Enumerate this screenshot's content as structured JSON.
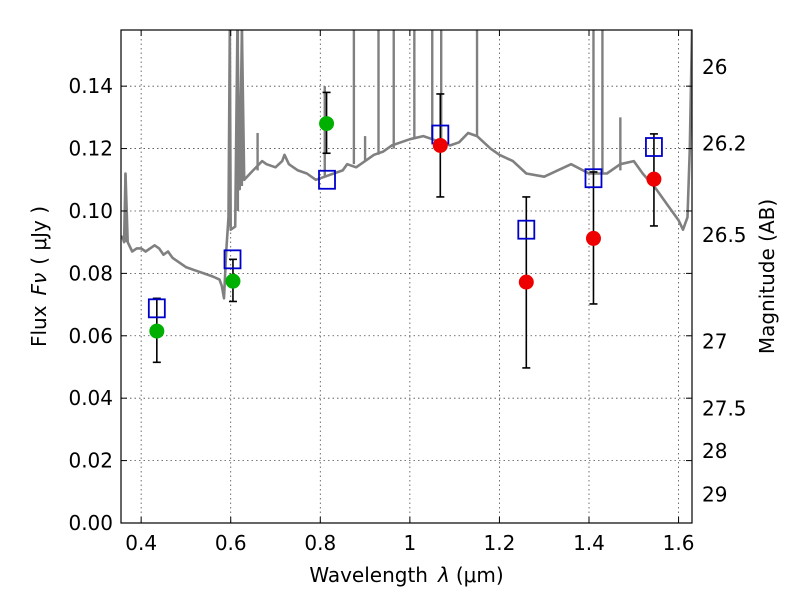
{
  "chart_data": {
    "type": "scatter",
    "xlabel_text": "Wavelength",
    "xlabel_symbol": "λ",
    "xlabel_unit": "(μm)",
    "ylabel_text": "Flux",
    "ylabel_symbol": "Fν",
    "ylabel_unit": "( μJy )",
    "ylabel_right": "Magnitude (AB)",
    "xlim": [
      0.355,
      1.63
    ],
    "ylim": [
      0.0,
      0.158
    ],
    "grid": true,
    "x_ticks": [
      0.4,
      0.6,
      0.8,
      1.0,
      1.2,
      1.4,
      1.6
    ],
    "x_tick_labels": [
      "0.4",
      "0.6",
      "0.8",
      "1",
      "1.2",
      "1.4",
      "1.6"
    ],
    "y_ticks": [
      0.0,
      0.02,
      0.04,
      0.06,
      0.08,
      0.1,
      0.12,
      0.14
    ],
    "y_tick_labels": [
      "0.00",
      "0.02",
      "0.04",
      "0.06",
      "0.08",
      "0.10",
      "0.12",
      "0.14"
    ],
    "right_ticks": [
      {
        "label": "26",
        "flux": 0.1462
      },
      {
        "label": "26.2",
        "flux": 0.1216
      },
      {
        "label": "26.5",
        "flux": 0.0923
      },
      {
        "label": "27",
        "flux": 0.0582
      },
      {
        "label": "27.5",
        "flux": 0.0367
      },
      {
        "label": "28",
        "flux": 0.0231
      },
      {
        "label": "29",
        "flux": 0.0092
      }
    ],
    "series": [
      {
        "name": "model_spectrum",
        "kind": "line",
        "color": "#808080",
        "points": [
          [
            0.355,
            0.092
          ],
          [
            0.36,
            0.091
          ],
          [
            0.362,
            0.09
          ],
          [
            0.365,
            0.112
          ],
          [
            0.37,
            0.09
          ],
          [
            0.38,
            0.087
          ],
          [
            0.39,
            0.088
          ],
          [
            0.4,
            0.088
          ],
          [
            0.41,
            0.087
          ],
          [
            0.42,
            0.088
          ],
          [
            0.43,
            0.089
          ],
          [
            0.44,
            0.088
          ],
          [
            0.45,
            0.086
          ],
          [
            0.46,
            0.087
          ],
          [
            0.47,
            0.085
          ],
          [
            0.48,
            0.084
          ],
          [
            0.5,
            0.082
          ],
          [
            0.52,
            0.081
          ],
          [
            0.54,
            0.08
          ],
          [
            0.56,
            0.079
          ],
          [
            0.575,
            0.078
          ],
          [
            0.58,
            0.076
          ],
          [
            0.585,
            0.072
          ],
          [
            0.59,
            0.087
          ],
          [
            0.595,
            0.098
          ],
          [
            0.598,
            0.158
          ],
          [
            0.6,
            0.094
          ],
          [
            0.61,
            0.095
          ],
          [
            0.615,
            0.158
          ],
          [
            0.62,
            0.107
          ],
          [
            0.625,
            0.158
          ],
          [
            0.63,
            0.11
          ],
          [
            0.65,
            0.113
          ],
          [
            0.67,
            0.116
          ],
          [
            0.68,
            0.115
          ],
          [
            0.7,
            0.114
          ],
          [
            0.715,
            0.116
          ],
          [
            0.72,
            0.118
          ],
          [
            0.73,
            0.115
          ],
          [
            0.75,
            0.113
          ],
          [
            0.77,
            0.112
          ],
          [
            0.79,
            0.11
          ],
          [
            0.81,
            0.111
          ],
          [
            0.83,
            0.112
          ],
          [
            0.85,
            0.113
          ],
          [
            0.86,
            0.115
          ],
          [
            0.88,
            0.114
          ],
          [
            0.9,
            0.116
          ],
          [
            0.92,
            0.118
          ],
          [
            0.94,
            0.119
          ],
          [
            0.96,
            0.121
          ],
          [
            0.98,
            0.122
          ],
          [
            1.0,
            0.123
          ],
          [
            1.03,
            0.124
          ],
          [
            1.05,
            0.123
          ],
          [
            1.07,
            0.122
          ],
          [
            1.09,
            0.121
          ],
          [
            1.11,
            0.122
          ],
          [
            1.13,
            0.125
          ],
          [
            1.15,
            0.124
          ],
          [
            1.18,
            0.12
          ],
          [
            1.2,
            0.118
          ],
          [
            1.23,
            0.116
          ],
          [
            1.26,
            0.112
          ],
          [
            1.3,
            0.111
          ],
          [
            1.33,
            0.113
          ],
          [
            1.36,
            0.115
          ],
          [
            1.4,
            0.112
          ],
          [
            1.44,
            0.112
          ],
          [
            1.47,
            0.115
          ],
          [
            1.5,
            0.116
          ],
          [
            1.52,
            0.112
          ],
          [
            1.55,
            0.107
          ],
          [
            1.58,
            0.101
          ],
          [
            1.6,
            0.097
          ],
          [
            1.61,
            0.094
          ],
          [
            1.62,
            0.098
          ],
          [
            1.625,
            0.12
          ],
          [
            1.63,
            0.158
          ]
        ]
      },
      {
        "name": "spectrum_spikes",
        "kind": "spikes",
        "color": "#808080",
        "lines": [
          [
            0.365,
            0.09,
            0.112
          ],
          [
            0.598,
            0.095,
            0.158
          ],
          [
            0.616,
            0.1,
            0.158
          ],
          [
            0.625,
            0.108,
            0.158
          ],
          [
            0.66,
            0.113,
            0.125
          ],
          [
            0.81,
            0.111,
            0.14
          ],
          [
            0.875,
            0.115,
            0.158
          ],
          [
            0.9,
            0.116,
            0.124
          ],
          [
            0.93,
            0.118,
            0.158
          ],
          [
            0.964,
            0.12,
            0.158
          ],
          [
            1.01,
            0.123,
            0.158
          ],
          [
            1.05,
            0.123,
            0.158
          ],
          [
            1.07,
            0.122,
            0.158
          ],
          [
            1.15,
            0.124,
            0.158
          ],
          [
            1.41,
            0.112,
            0.158
          ],
          [
            1.43,
            0.112,
            0.158
          ],
          [
            1.47,
            0.113,
            0.13
          ]
        ]
      },
      {
        "name": "green_measurements",
        "kind": "circle",
        "color": "#00b000",
        "points": [
          {
            "x": 0.435,
            "y": 0.0615,
            "err_lo": 0.0515,
            "err_hi": 0.072
          },
          {
            "x": 0.605,
            "y": 0.0775,
            "err_lo": 0.071,
            "err_hi": 0.0845
          },
          {
            "x": 0.814,
            "y": 0.128,
            "err_lo": 0.1185,
            "err_hi": 0.138
          }
        ]
      },
      {
        "name": "red_measurements",
        "kind": "circle",
        "color": "#ee0000",
        "points": [
          {
            "x": 1.068,
            "y": 0.121,
            "err_lo": 0.1045,
            "err_hi": 0.1375
          },
          {
            "x": 1.26,
            "y": 0.0772,
            "err_lo": 0.0497,
            "err_hi": 0.1045
          },
          {
            "x": 1.41,
            "y": 0.0912,
            "err_lo": 0.0702,
            "err_hi": 0.1125
          },
          {
            "x": 1.545,
            "y": 0.1102,
            "err_lo": 0.0952,
            "err_hi": 0.1247
          }
        ]
      },
      {
        "name": "model_photometry",
        "kind": "square",
        "color": "#0000cc",
        "points": [
          {
            "x": 0.435,
            "y": 0.0688
          },
          {
            "x": 0.604,
            "y": 0.0845
          },
          {
            "x": 0.815,
            "y": 0.11
          },
          {
            "x": 1.068,
            "y": 0.1245
          },
          {
            "x": 1.26,
            "y": 0.094
          },
          {
            "x": 1.41,
            "y": 0.1105
          },
          {
            "x": 1.545,
            "y": 0.1205
          }
        ]
      }
    ]
  }
}
